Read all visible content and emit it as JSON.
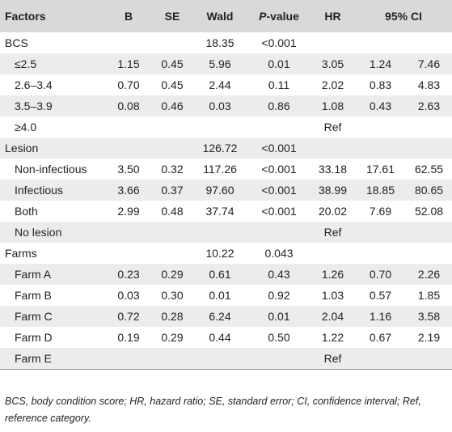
{
  "table": {
    "headers": {
      "factors": "Factors",
      "b": "B",
      "se": "SE",
      "wald": "Wald",
      "p_italic": "P",
      "p_rest": "-value",
      "hr": "HR",
      "ci": "95% CI"
    },
    "rows": [
      {
        "label": "BCS",
        "b": "",
        "se": "",
        "wald": "18.35",
        "p": "<0.001",
        "hr": "",
        "ci_low": "",
        "ci_high": "",
        "sub": false
      },
      {
        "label": "≤2.5",
        "b": "1.15",
        "se": "0.45",
        "wald": "5.96",
        "p": "0.01",
        "hr": "3.05",
        "ci_low": "1.24",
        "ci_high": "7.46",
        "sub": true
      },
      {
        "label": "2.6–3.4",
        "b": "0.70",
        "se": "0.45",
        "wald": "2.44",
        "p": "0.11",
        "hr": "2.02",
        "ci_low": "0.83",
        "ci_high": "4.83",
        "sub": true
      },
      {
        "label": "3.5–3.9",
        "b": "0.08",
        "se": "0.46",
        "wald": "0.03",
        "p": "0.86",
        "hr": "1.08",
        "ci_low": "0.43",
        "ci_high": "2.63",
        "sub": true
      },
      {
        "label": "≥4.0",
        "b": "",
        "se": "",
        "wald": "",
        "p": "",
        "hr": "Ref",
        "ci_low": "",
        "ci_high": "",
        "sub": true
      },
      {
        "label": "Lesion",
        "b": "",
        "se": "",
        "wald": "126.72",
        "p": "<0.001",
        "hr": "",
        "ci_low": "",
        "ci_high": "",
        "sub": false
      },
      {
        "label": "Non-infectious",
        "b": "3.50",
        "se": "0.32",
        "wald": "117.26",
        "p": "<0.001",
        "hr": "33.18",
        "ci_low": "17.61",
        "ci_high": "62.55",
        "sub": true
      },
      {
        "label": "Infectious",
        "b": "3.66",
        "se": "0.37",
        "wald": "97.60",
        "p": "<0.001",
        "hr": "38.99",
        "ci_low": "18.85",
        "ci_high": "80.65",
        "sub": true
      },
      {
        "label": "Both",
        "b": "2.99",
        "se": "0.48",
        "wald": "37.74",
        "p": "<0.001",
        "hr": "20.02",
        "ci_low": "7.69",
        "ci_high": "52.08",
        "sub": true
      },
      {
        "label": "No lesion",
        "b": "",
        "se": "",
        "wald": "",
        "p": "",
        "hr": "Ref",
        "ci_low": "",
        "ci_high": "",
        "sub": true
      },
      {
        "label": "Farms",
        "b": "",
        "se": "",
        "wald": "10.22",
        "p": "0.043",
        "hr": "",
        "ci_low": "",
        "ci_high": "",
        "sub": false
      },
      {
        "label": "Farm A",
        "b": "0.23",
        "se": "0.29",
        "wald": "0.61",
        "p": "0.43",
        "hr": "1.26",
        "ci_low": "0.70",
        "ci_high": "2.26",
        "sub": true
      },
      {
        "label": "Farm B",
        "b": "0.03",
        "se": "0.30",
        "wald": "0.01",
        "p": "0.92",
        "hr": "1.03",
        "ci_low": "0.57",
        "ci_high": "1.85",
        "sub": true
      },
      {
        "label": "Farm C",
        "b": "0.72",
        "se": "0.28",
        "wald": "6.24",
        "p": "0.01",
        "hr": "2.04",
        "ci_low": "1.16",
        "ci_high": "3.58",
        "sub": true
      },
      {
        "label": "Farm D",
        "b": "0.19",
        "se": "0.29",
        "wald": "0.44",
        "p": "0.50",
        "hr": "1.22",
        "ci_low": "0.67",
        "ci_high": "2.19",
        "sub": true
      },
      {
        "label": "Farm E",
        "b": "",
        "se": "",
        "wald": "",
        "p": "",
        "hr": "Ref",
        "ci_low": "",
        "ci_high": "",
        "sub": true
      }
    ]
  },
  "footnote": "BCS, body condition score; HR, hazard ratio; SE, standard error; CI, confidence interval; Ref, reference category.",
  "colors": {
    "header_bg": "#d9d9d9",
    "row_shade": "#ececec"
  }
}
